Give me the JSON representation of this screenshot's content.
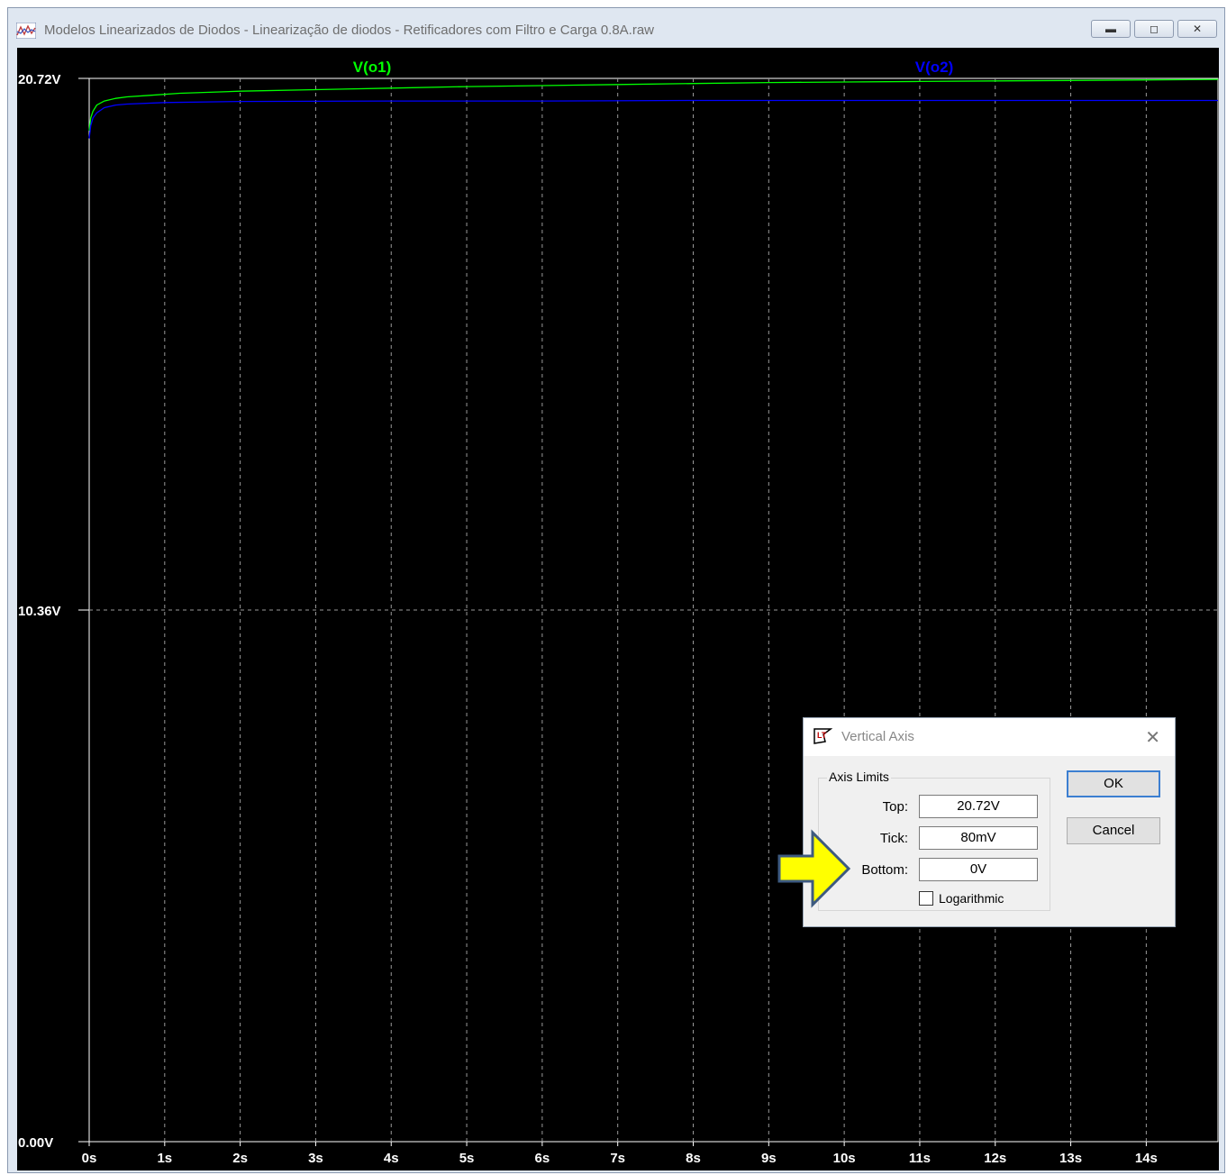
{
  "window": {
    "title": "Modelos Linearizados de Diodos - Linearização de diodos - Retificadores com Filtro e Carga 0.8A.raw",
    "icon": "waveform-viewer-icon",
    "controls": {
      "minimize": "minimize-icon",
      "maximize": "maximize-icon",
      "close": "close-icon"
    }
  },
  "chart_data": {
    "type": "line",
    "xlabel": "",
    "ylabel": "",
    "x_ticks": [
      "0s",
      "1s",
      "2s",
      "3s",
      "4s",
      "5s",
      "6s",
      "7s",
      "8s",
      "9s",
      "10s",
      "11s",
      "12s",
      "13s",
      "14s"
    ],
    "y_ticks": [
      "0.00V",
      "10.36V",
      "20.72V"
    ],
    "xlim": [
      0,
      14.95
    ],
    "ylim": [
      0,
      20.72
    ],
    "grid": true,
    "background": "#000000",
    "series": [
      {
        "name": "V(o1)",
        "color": "#00ff00",
        "x": [
          0,
          0.02,
          0.05,
          0.1,
          0.2,
          0.35,
          0.5,
          0.8,
          1.2,
          2,
          3,
          4,
          5,
          6,
          7,
          8,
          9,
          10,
          11,
          12,
          13,
          14,
          14.95
        ],
        "y": [
          19.7,
          19.95,
          20.08,
          20.2,
          20.28,
          20.33,
          20.36,
          20.39,
          20.43,
          20.47,
          20.5,
          20.53,
          20.56,
          20.58,
          20.6,
          20.62,
          20.64,
          20.65,
          20.66,
          20.67,
          20.68,
          20.69,
          20.7
        ]
      },
      {
        "name": "V(o2)",
        "color": "#0000ff",
        "x": [
          0,
          0.02,
          0.05,
          0.1,
          0.2,
          0.35,
          0.5,
          1,
          2,
          4,
          6,
          8,
          10,
          12,
          14,
          14.95
        ],
        "y": [
          19.55,
          19.8,
          19.95,
          20.05,
          20.15,
          20.2,
          20.22,
          20.25,
          20.27,
          20.28,
          20.28,
          20.29,
          20.29,
          20.29,
          20.29,
          20.29
        ]
      }
    ]
  },
  "dialog": {
    "title": "Vertical Axis",
    "icon": "ltspice-icon",
    "close_icon": "close-icon",
    "group_label": "Axis Limits",
    "top_label": "Top:",
    "top_value": "20.72V",
    "tick_label": "Tick:",
    "tick_value": "80mV",
    "bottom_label": "Bottom:",
    "bottom_value": "0V",
    "log_label": "Logarithmic",
    "log_checked": false,
    "ok_label": "OK",
    "cancel_label": "Cancel"
  },
  "annotation": {
    "icon": "yellow-arrow-icon",
    "color": "#ffff00"
  }
}
